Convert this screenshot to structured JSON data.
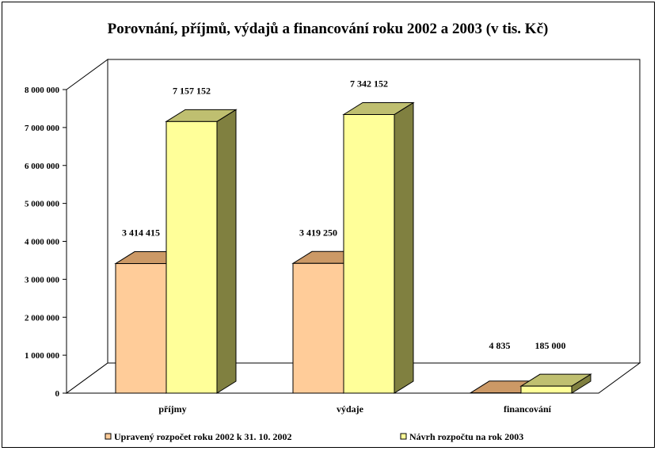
{
  "chart_data": {
    "type": "bar",
    "title": "Porovnání, příjmů, výdajů a financování roku 2002 a 2003 (v tis. Kč)",
    "xlabel": "",
    "ylabel": "",
    "categories": [
      "příjmy",
      "výdaje",
      "financování"
    ],
    "series": [
      {
        "name": "Upravený rozpočet roku 2002 k 31. 10. 2002",
        "values": [
          3414415,
          3419250,
          4835
        ],
        "labels": [
          "3 414 415",
          "3 419 250",
          "4 835"
        ],
        "color": "#FFCC99"
      },
      {
        "name": "Návrh rozpočtu na rok 2003",
        "values": [
          7157152,
          7342152,
          185000
        ],
        "labels": [
          "7 157 152",
          "7 342 152",
          "185 000"
        ],
        "color": "#FFFF99"
      }
    ],
    "ylim": [
      0,
      8000000
    ],
    "yticks": [
      0,
      1000000,
      2000000,
      3000000,
      4000000,
      5000000,
      6000000,
      7000000,
      8000000
    ],
    "ytick_labels": [
      "0",
      "1 000 000",
      "2 000 000",
      "3 000 000",
      "4 000 000",
      "5 000 000",
      "6 000 000",
      "7 000 000",
      "8 000 000"
    ],
    "grid": false,
    "legend": "bottom",
    "style": "3d-clustered-column"
  }
}
